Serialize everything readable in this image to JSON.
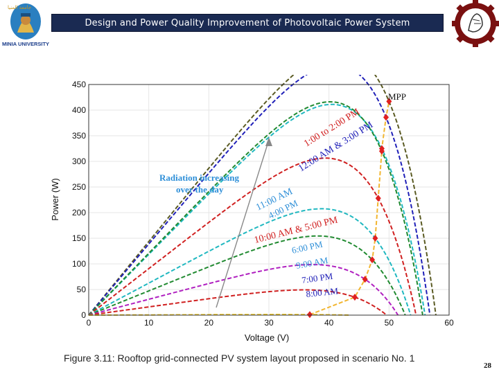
{
  "header": {
    "title": "Design and Power Quality Improvement of Photovoltaic Power System",
    "logo_left_text": "MINIA UNIVERSITY",
    "logo_left_arabic": "جامعة المنيا"
  },
  "caption": "Figure 3.11: Rooftop grid-connected PV system layout proposed in scenario No. 1",
  "page_number": "28",
  "colors": {
    "banner_bg": "#1a2a52",
    "mpp_line": "#f2b630",
    "mpp_marker": "#e02020",
    "annotation": "#2e8fd8"
  },
  "chart_data": {
    "type": "line",
    "title": "",
    "xlabel": "Voltage (V)",
    "ylabel": "Power (W)",
    "xlim": [
      0,
      60
    ],
    "ylim": [
      0,
      450
    ],
    "xticks": [
      0,
      10,
      20,
      30,
      40,
      50,
      60
    ],
    "yticks": [
      0,
      50,
      100,
      150,
      200,
      250,
      300,
      350,
      400,
      450
    ],
    "grid": true,
    "series": [
      {
        "color": "#5a5a22",
        "vmpp": 50.0,
        "pmpp": 417,
        "voc": 57.8
      },
      {
        "color": "#2020b8",
        "vmpp": 49.5,
        "pmpp": 386,
        "voc": 56.8
      },
      {
        "color": "#20b8c0",
        "vmpp": 48.8,
        "pmpp": 325,
        "voc": 56.0
      },
      {
        "color": "#208a30",
        "vmpp": 48.8,
        "pmpp": 320,
        "voc": 55.6
      },
      {
        "color": "#d02020",
        "vmpp": 48.2,
        "pmpp": 228,
        "voc": 54.5
      },
      {
        "color": "#20b8c0",
        "vmpp": 47.7,
        "pmpp": 150,
        "voc": 53.6
      },
      {
        "color": "#208a30",
        "vmpp": 47.2,
        "pmpp": 108,
        "voc": 52.7
      },
      {
        "color": "#b020c0",
        "vmpp": 46.0,
        "pmpp": 70,
        "voc": 51.5
      },
      {
        "color": "#d02020",
        "vmpp": 44.3,
        "pmpp": 35,
        "voc": 49.6
      },
      {
        "color": "#e8c020",
        "vmpp": 36.8,
        "pmpp": 1,
        "voc": 43.3
      }
    ],
    "mpp_label": "MPP",
    "annotations": [
      {
        "text": "1:00 to 2:00 PM",
        "color": "#d02020"
      },
      {
        "text": "12:00 AM & 3:00 PM",
        "color": "#2020b8"
      },
      {
        "text": "11:00 AM",
        "color": "#2e8fd8"
      },
      {
        "text": "4:00 PM",
        "color": "#2e8fd8"
      },
      {
        "text": "10:00 AM & 5:00 PM",
        "color": "#d02020"
      },
      {
        "text": "6:00 PM",
        "color": "#2e8fd8"
      },
      {
        "text": "9:00 AM",
        "color": "#2e8fd8"
      },
      {
        "text": "7:00 PM",
        "color": "#2020b8"
      },
      {
        "text": "8:00 AM",
        "color": "#2020b8"
      }
    ],
    "radiation_label_line1": "Radiation increasing",
    "radiation_label_line2": "over the day"
  }
}
